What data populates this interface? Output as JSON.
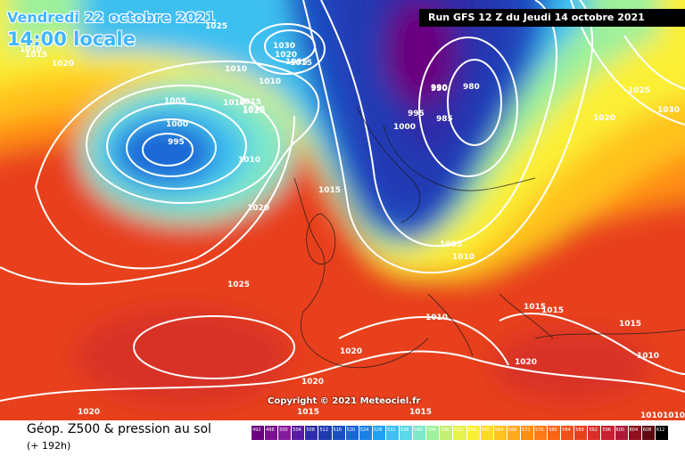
{
  "header": {
    "valid_date": "Vendredi 22 octobre 2021",
    "local_time": "14:00 locale",
    "run": "Run GFS 12 Z du Jeudi 14 octobre 2021"
  },
  "footer": {
    "copyright": "Copyright © 2021 Meteociel.fr",
    "legend_title": "Géop. Z500 & pression au sol",
    "legend_subtitle": "(+ 192h)"
  },
  "scale": {
    "labels": [
      "492",
      "496",
      "500",
      "504",
      "508",
      "512",
      "516",
      "520",
      "524",
      "528",
      "532",
      "536",
      "540",
      "544",
      "548",
      "552",
      "556",
      "560",
      "564",
      "568",
      "572",
      "576",
      "580",
      "584",
      "588",
      "592",
      "596",
      "600",
      "604",
      "608",
      "612"
    ],
    "colors": [
      "#6a0080",
      "#7a1090",
      "#861aa0",
      "#5a1aa6",
      "#2f2ca8",
      "#203ab4",
      "#1a4fc4",
      "#1a66d6",
      "#1a82e6",
      "#1fa0f0",
      "#3cc0f0",
      "#5ad8e8",
      "#7ee8c8",
      "#9ef09a",
      "#c2f070",
      "#e6f24a",
      "#fbef36",
      "#ffd92a",
      "#ffc21e",
      "#ffa81a",
      "#ff8e16",
      "#ff7a14",
      "#fb6414",
      "#f24e18",
      "#e8401e",
      "#d83028",
      "#c82030",
      "#b01838",
      "#901020",
      "#5c0a10",
      "#000000"
    ]
  },
  "isobars": [
    "1025",
    "1010",
    "1015",
    "1030",
    "1020",
    "1015",
    "1010",
    "1020",
    "1015",
    "1010",
    "1005",
    "1000",
    "995",
    "990",
    "1010",
    "1010",
    "1020",
    "1010",
    "1015",
    "990",
    "980",
    "995",
    "985",
    "1000",
    "1020",
    "1025",
    "1015",
    "1020",
    "1030",
    "1025",
    "1005",
    "1010",
    "1015",
    "1015",
    "1010",
    "1015",
    "1020",
    "1020",
    "1010",
    "1020",
    "1020",
    "1015",
    "1015",
    "1010",
    "1010"
  ]
}
